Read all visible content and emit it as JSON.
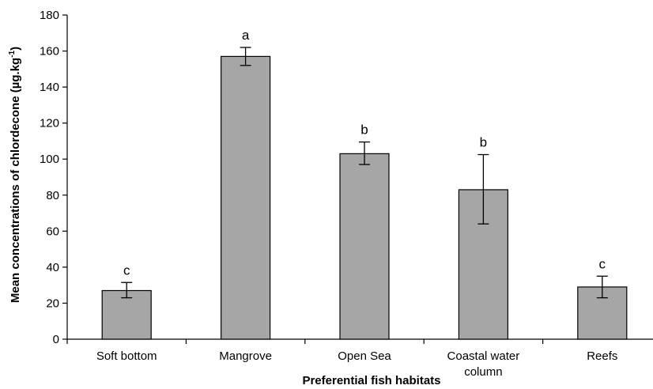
{
  "chart_data": {
    "type": "bar",
    "xlabel": "Preferential fish habitats",
    "ylabel_main": "Mean concentrations of chlordecone (µg.kg",
    "ylabel_sup": "-1",
    "ylabel_close": ")",
    "ylim": [
      0,
      180
    ],
    "yticks": [
      0,
      20,
      40,
      60,
      80,
      100,
      120,
      140,
      160,
      180
    ],
    "grid": false,
    "categories": [
      [
        "Soft bottom"
      ],
      [
        "Mangrove"
      ],
      [
        "Open Sea"
      ],
      [
        "Coastal water",
        "column"
      ],
      [
        "Reefs"
      ]
    ],
    "values": [
      27,
      157,
      103,
      83,
      29
    ],
    "error_low": [
      23,
      152,
      97,
      64,
      23
    ],
    "error_high": [
      31.5,
      162,
      109.5,
      102.5,
      35
    ],
    "significance": [
      "c",
      "a",
      "b",
      "b",
      "c"
    ],
    "bar_color": "#a6a6a6",
    "bar_edge_color": "#000000"
  }
}
